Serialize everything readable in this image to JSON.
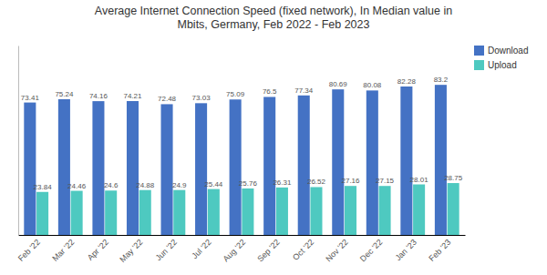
{
  "chart_data": {
    "type": "bar",
    "title": "Average Internet Connection Speed (fixed network), In Median value in\nMbits, Germany, Feb 2022 - Feb 2023",
    "categories": [
      "Feb '22",
      "Mar '22",
      "Apr '22",
      "May '22",
      "Jun '22",
      "Jul '22",
      "Aug '22",
      "Sep '22",
      "Oct '22",
      "Nov '22",
      "Dec '22",
      "Jan '23",
      "Feb '23"
    ],
    "series": [
      {
        "name": "Download",
        "color": "#4472C4",
        "values": [
          73.41,
          75.24,
          74.16,
          74.21,
          72.48,
          73.03,
          75.09,
          76.5,
          77.34,
          80.69,
          80.08,
          82.28,
          83.2
        ]
      },
      {
        "name": "Upload",
        "color": "#4EC9C0",
        "values": [
          23.84,
          24.46,
          24.6,
          24.88,
          24.9,
          25.44,
          25.76,
          26.31,
          26.52,
          27.16,
          27.15,
          28.01,
          28.75
        ]
      }
    ],
    "ylim": [
      0,
      105
    ],
    "grid": false,
    "legend": "upper right",
    "data_labels": true,
    "tick_labels": "x"
  }
}
